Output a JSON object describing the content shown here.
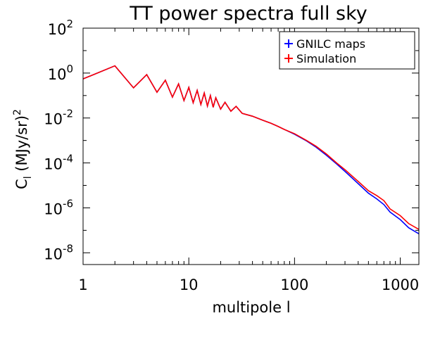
{
  "chart_data": {
    "type": "line",
    "title": "TT power spectra full sky",
    "xlabel": "multipole l",
    "ylabel_main": "C",
    "ylabel_sub": "l",
    "ylabel_unit": " (MJy/sr)",
    "ylabel_exp": "2",
    "xscale": "log",
    "yscale": "log",
    "xlim": [
      1,
      1500
    ],
    "ylim": [
      3e-09,
      100
    ],
    "xticks": [
      {
        "value": 1,
        "label": "1"
      },
      {
        "value": 10,
        "label": "10"
      },
      {
        "value": 100,
        "label": "100"
      },
      {
        "value": 1000,
        "label": "1000"
      }
    ],
    "yticks": [
      {
        "value": 1e-08,
        "mant": "10",
        "exp": "-8"
      },
      {
        "value": 1e-06,
        "mant": "10",
        "exp": "-6"
      },
      {
        "value": 0.0001,
        "mant": "10",
        "exp": "-4"
      },
      {
        "value": 0.01,
        "mant": "10",
        "exp": "-2"
      },
      {
        "value": 1,
        "mant": "10",
        "exp": "0"
      },
      {
        "value": 100,
        "mant": "10",
        "exp": "2"
      }
    ],
    "grid": false,
    "legend_position": "top-right",
    "series": [
      {
        "name": "GNILC maps",
        "color": "#0000ff",
        "points": [
          [
            1,
            0.55
          ],
          [
            2,
            2.1
          ],
          [
            3,
            0.22
          ],
          [
            4,
            0.85
          ],
          [
            5,
            0.14
          ],
          [
            6,
            0.48
          ],
          [
            7,
            0.085
          ],
          [
            8,
            0.33
          ],
          [
            9,
            0.06
          ],
          [
            10,
            0.23
          ],
          [
            11,
            0.048
          ],
          [
            12,
            0.17
          ],
          [
            13,
            0.04
          ],
          [
            14,
            0.13
          ],
          [
            15,
            0.034
          ],
          [
            16,
            0.1
          ],
          [
            17,
            0.03
          ],
          [
            18,
            0.08
          ],
          [
            20,
            0.025
          ],
          [
            22,
            0.05
          ],
          [
            25,
            0.02
          ],
          [
            28,
            0.033
          ],
          [
            32,
            0.016
          ],
          [
            40,
            0.012
          ],
          [
            50,
            0.008
          ],
          [
            60,
            0.0058
          ],
          [
            70,
            0.0042
          ],
          [
            80,
            0.0031
          ],
          [
            100,
            0.0019
          ],
          [
            130,
            0.00095
          ],
          [
            160,
            0.0005
          ],
          [
            200,
            0.00022
          ],
          [
            250,
            9e-05
          ],
          [
            300,
            4.2e-05
          ],
          [
            400,
            1.2e-05
          ],
          [
            500,
            4.5e-06
          ],
          [
            600,
            2.5e-06
          ],
          [
            700,
            1.4e-06
          ],
          [
            800,
            6.5e-07
          ],
          [
            1000,
            3e-07
          ],
          [
            1200,
            1.3e-07
          ],
          [
            1500,
            7e-08
          ]
        ]
      },
      {
        "name": "Simulation",
        "color": "#ff0000",
        "points": [
          [
            1,
            0.55
          ],
          [
            2,
            2.1
          ],
          [
            3,
            0.22
          ],
          [
            4,
            0.85
          ],
          [
            5,
            0.14
          ],
          [
            6,
            0.48
          ],
          [
            7,
            0.085
          ],
          [
            8,
            0.33
          ],
          [
            9,
            0.06
          ],
          [
            10,
            0.23
          ],
          [
            11,
            0.048
          ],
          [
            12,
            0.17
          ],
          [
            13,
            0.04
          ],
          [
            14,
            0.13
          ],
          [
            15,
            0.034
          ],
          [
            16,
            0.1
          ],
          [
            17,
            0.03
          ],
          [
            18,
            0.08
          ],
          [
            20,
            0.025
          ],
          [
            22,
            0.05
          ],
          [
            25,
            0.02
          ],
          [
            28,
            0.033
          ],
          [
            32,
            0.016
          ],
          [
            40,
            0.012
          ],
          [
            50,
            0.008
          ],
          [
            60,
            0.0058
          ],
          [
            70,
            0.0042
          ],
          [
            80,
            0.0031
          ],
          [
            100,
            0.002
          ],
          [
            130,
            0.001
          ],
          [
            160,
            0.00055
          ],
          [
            200,
            0.00025
          ],
          [
            250,
            0.0001
          ],
          [
            300,
            5e-05
          ],
          [
            400,
            1.5e-05
          ],
          [
            500,
            5.8e-06
          ],
          [
            600,
            3.5e-06
          ],
          [
            700,
            2.1e-06
          ],
          [
            800,
            9e-07
          ],
          [
            1000,
            4.5e-07
          ],
          [
            1200,
            2e-07
          ],
          [
            1500,
            1.1e-07
          ]
        ]
      }
    ]
  }
}
